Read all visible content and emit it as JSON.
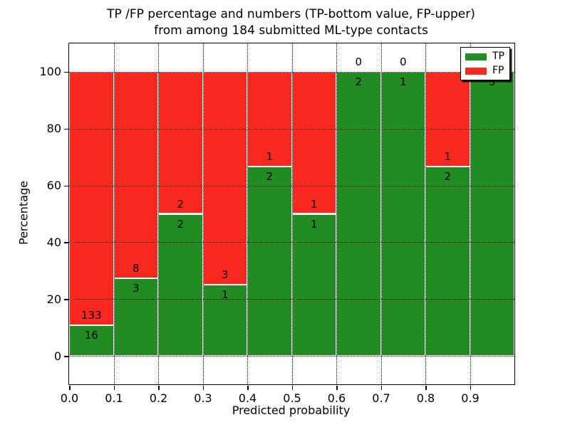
{
  "chart_data": {
    "type": "bar",
    "stacked": true,
    "normalized": "each bin's TP+FP scaled to 100%",
    "title_line1": "TP /FP percentage and numbers (TP-bottom value, FP-upper)",
    "title_line2": "from among 184 submitted ML-type contacts",
    "total_contacts": 184,
    "xlabel": "Predicted probability",
    "ylabel": "Percentage",
    "xlim": [
      0.0,
      1.0
    ],
    "ylim": [
      -10,
      110
    ],
    "x_tick_values": [
      0.0,
      0.1,
      0.2,
      0.3,
      0.4,
      0.5,
      0.6,
      0.7,
      0.8,
      0.9
    ],
    "x_tick_labels": [
      "0.0",
      "0.1",
      "0.2",
      "0.3",
      "0.4",
      "0.5",
      "0.6",
      "0.7",
      "0.8",
      "0.9"
    ],
    "y_tick_values": [
      0,
      20,
      40,
      60,
      80,
      100
    ],
    "y_tick_labels": [
      "0",
      "20",
      "40",
      "60",
      "80",
      "100"
    ],
    "grid": true,
    "grid_style": "dotted",
    "legend_position": "upper right",
    "series": [
      {
        "name": "TP",
        "color": "#228b22"
      },
      {
        "name": "FP",
        "color": "#f9281e"
      }
    ],
    "legend": [
      {
        "label": "TP",
        "color": "#228b22"
      },
      {
        "label": "FP",
        "color": "#f9281e"
      }
    ],
    "bins": [
      {
        "x_start": 0.0,
        "x_end": 0.1,
        "tp": 16,
        "fp": 133
      },
      {
        "x_start": 0.1,
        "x_end": 0.2,
        "tp": 3,
        "fp": 8
      },
      {
        "x_start": 0.2,
        "x_end": 0.3,
        "tp": 2,
        "fp": 2
      },
      {
        "x_start": 0.3,
        "x_end": 0.4,
        "tp": 1,
        "fp": 3
      },
      {
        "x_start": 0.4,
        "x_end": 0.5,
        "tp": 2,
        "fp": 1
      },
      {
        "x_start": 0.5,
        "x_end": 0.6,
        "tp": 1,
        "fp": 1
      },
      {
        "x_start": 0.6,
        "x_end": 0.7,
        "tp": 2,
        "fp": 0
      },
      {
        "x_start": 0.7,
        "x_end": 0.8,
        "tp": 1,
        "fp": 0
      },
      {
        "x_start": 0.8,
        "x_end": 0.9,
        "tp": 2,
        "fp": 1
      },
      {
        "x_start": 0.9,
        "x_end": 1.0,
        "tp": 5,
        "fp": 0
      }
    ],
    "bar_label_rule": "FP count printed just above TP/FP boundary, TP count just below"
  }
}
